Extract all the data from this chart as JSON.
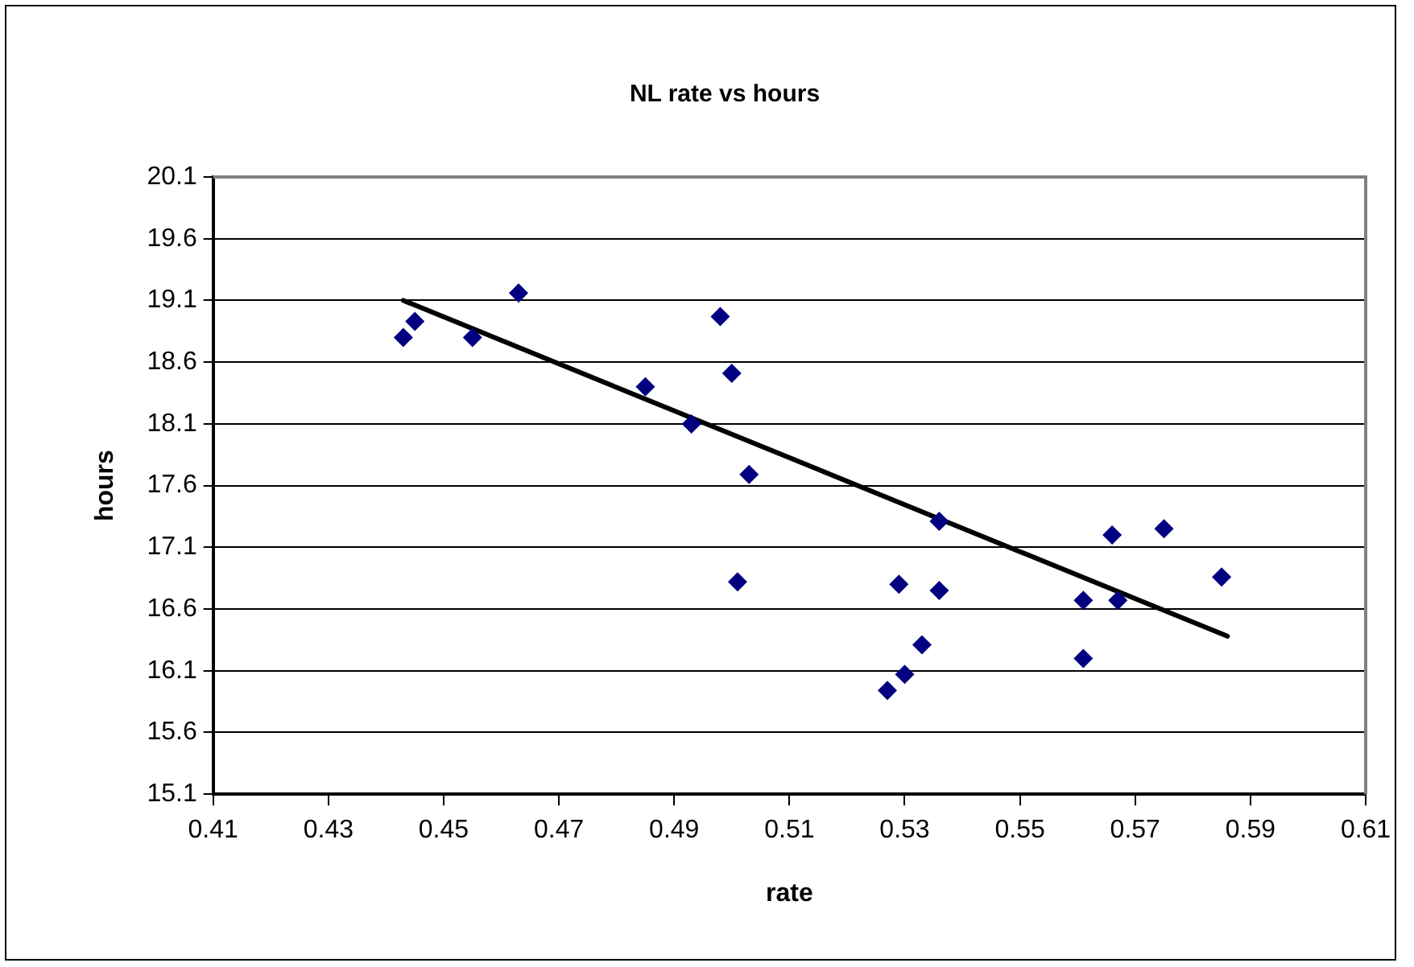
{
  "chart_data": {
    "type": "scatter",
    "title": "NL rate vs hours",
    "xlabel": "rate",
    "ylabel": "hours",
    "xlim": [
      0.41,
      0.61
    ],
    "xticks": [
      0.41,
      0.43,
      0.45,
      0.47,
      0.49,
      0.51,
      0.53,
      0.55,
      0.57,
      0.59,
      0.61
    ],
    "ylim": [
      15.1,
      20.1
    ],
    "yticks": [
      15.1,
      15.6,
      16.1,
      16.6,
      17.1,
      17.6,
      18.1,
      18.6,
      19.1,
      19.6,
      20.1
    ],
    "grid": "y",
    "marker": "diamond",
    "series": [
      {
        "type": "scatter",
        "color": "#000080",
        "x": [
          0.443,
          0.445,
          0.455,
          0.463,
          0.485,
          0.493,
          0.498,
          0.5,
          0.503,
          0.501,
          0.536,
          0.529,
          0.536,
          0.533,
          0.53,
          0.527,
          0.561,
          0.561,
          0.566,
          0.567,
          0.575,
          0.585
        ],
        "values": [
          18.8,
          18.93,
          18.8,
          19.16,
          18.4,
          18.1,
          18.97,
          18.51,
          17.69,
          16.82,
          17.31,
          16.8,
          16.75,
          16.31,
          16.07,
          15.94,
          16.67,
          16.2,
          17.2,
          16.67,
          17.25,
          16.86
        ]
      },
      {
        "type": "line",
        "color": "#000000",
        "marker": "none",
        "line_style": "solid",
        "x": [
          0.443,
          0.586
        ],
        "values": [
          19.1,
          16.38
        ]
      }
    ]
  }
}
